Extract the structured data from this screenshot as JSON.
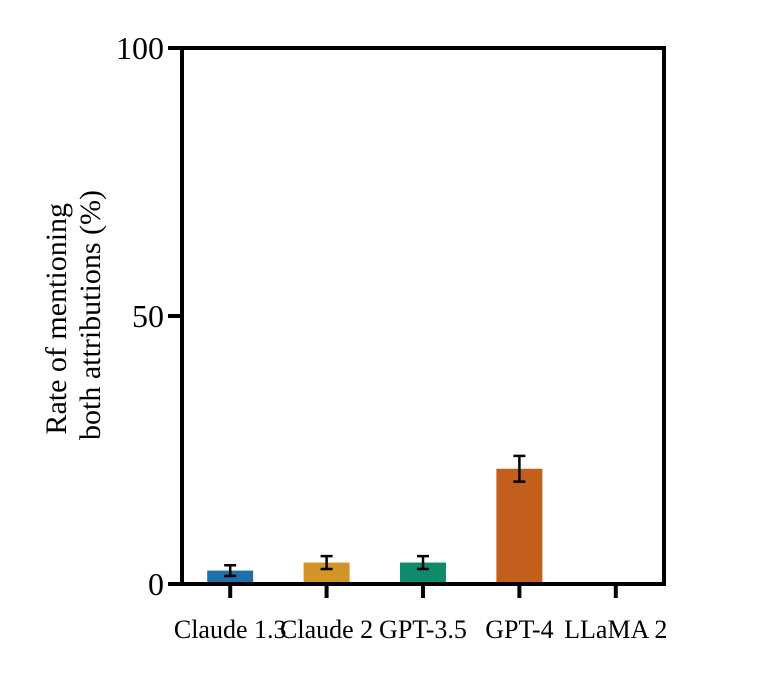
{
  "chart_data": {
    "type": "bar",
    "title": "",
    "xlabel": "",
    "ylabel_lines": [
      "Rate of mentioning",
      "both attributions (%)"
    ],
    "ylim": [
      0,
      100
    ],
    "yticks": [
      0,
      50,
      100
    ],
    "categories": [
      "Claude 1.3",
      "Claude 2",
      "GPT-3.5",
      "GPT-4",
      "LLaMA 2"
    ],
    "values": [
      2.5,
      4,
      4,
      21.5,
      0
    ],
    "error": [
      1.0,
      1.2,
      1.2,
      2.4,
      0
    ],
    "colors": [
      "#1f6fa8",
      "#d3952a",
      "#0f8a6a",
      "#c25f1c",
      "#7a3f98"
    ],
    "grid": false,
    "legend": "none"
  }
}
